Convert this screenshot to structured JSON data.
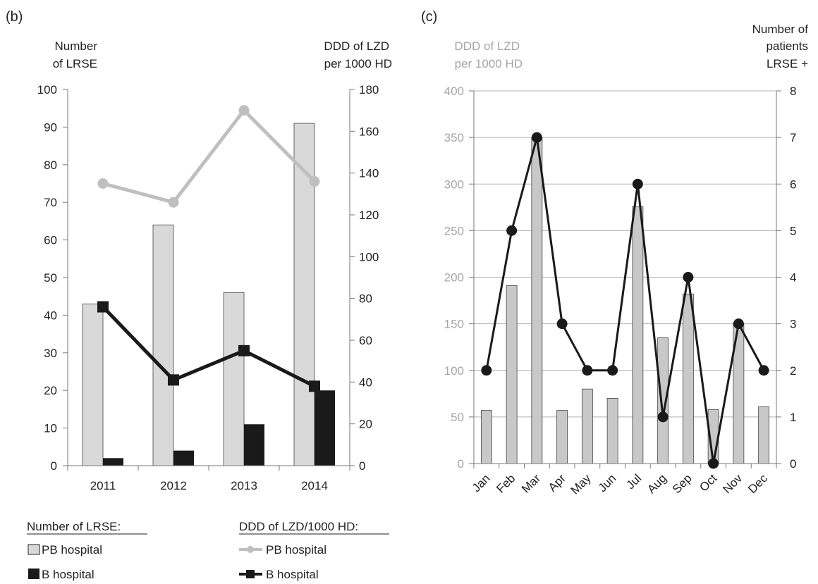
{
  "colors": {
    "pb_bar_fill": "#d9d9d9",
    "b_bar_fill": "#1a1a1a",
    "pb_line": "#bfbfbf",
    "b_line": "#1a1a1a",
    "c_bar_fill": "#c8c8c8",
    "c_line": "#1a1a1a",
    "c_left_axis_text": "#a6a6a6",
    "axis": "#777777",
    "grid": "#b0b0b0",
    "text": "#222222"
  },
  "panel_b": {
    "label": "(b)",
    "left_title": [
      "Number",
      "of LRSE"
    ],
    "right_title": [
      "DDD of LZD",
      "per 1000 HD"
    ],
    "legend": {
      "left_heading": "Number of LRSE:",
      "right_heading": "DDD of LZD/1000 HD:",
      "pb_bar": "PB hospital",
      "b_bar": "B hospital",
      "pb_line": "PB hospital",
      "b_line": "B hospital"
    }
  },
  "panel_c": {
    "label": "(c)",
    "left_title": [
      "DDD of LZD",
      "per 1000 HD"
    ],
    "right_title": [
      "Number of",
      "patients",
      "LRSE +"
    ]
  },
  "chart_data": [
    {
      "type": "bar",
      "categories": [
        "2011",
        "2012",
        "2013",
        "2014"
      ],
      "y_left": {
        "label": "Number of LRSE",
        "ylim": [
          0,
          100
        ],
        "ticks": [
          0,
          10,
          20,
          30,
          40,
          50,
          60,
          70,
          80,
          90,
          100
        ]
      },
      "y_right": {
        "label": "DDD of LZD per 1000 HD",
        "ylim": [
          0,
          180
        ],
        "ticks": [
          0,
          20,
          40,
          60,
          80,
          100,
          120,
          140,
          160,
          180
        ]
      },
      "series": [
        {
          "name": "PB hospital",
          "kind": "bar",
          "axis": "left",
          "values": [
            43,
            64,
            46,
            91
          ]
        },
        {
          "name": "B hospital",
          "kind": "bar",
          "axis": "left",
          "values": [
            2,
            4,
            11,
            20
          ]
        },
        {
          "name": "PB hospital",
          "kind": "line",
          "axis": "right",
          "values": [
            135,
            126,
            170,
            136
          ]
        },
        {
          "name": "B hospital",
          "kind": "line",
          "axis": "right",
          "values": [
            76,
            41,
            55,
            38
          ]
        }
      ],
      "grid": false
    },
    {
      "type": "bar",
      "categories": [
        "Jan",
        "Feb",
        "Mar",
        "Apr",
        "May",
        "Jun",
        "Jul",
        "Aug",
        "Sep",
        "Oct",
        "Nov",
        "Dec"
      ],
      "y_left": {
        "label": "DDD of LZD per 1000 HD",
        "ylim": [
          0,
          400
        ],
        "ticks": [
          0,
          50,
          100,
          150,
          200,
          250,
          300,
          350,
          400
        ]
      },
      "y_right": {
        "label": "Number of patients LRSE +",
        "ylim": [
          0,
          8
        ],
        "ticks": [
          0,
          1,
          2,
          3,
          4,
          5,
          6,
          7,
          8
        ]
      },
      "series": [
        {
          "name": "DDD of LZD per 1000 HD",
          "kind": "bar",
          "axis": "left",
          "values": [
            57,
            191,
            350,
            57,
            80,
            70,
            276,
            135,
            182,
            58,
            150,
            61
          ]
        },
        {
          "name": "Number of patients LRSE +",
          "kind": "line",
          "axis": "right",
          "values": [
            2,
            5,
            7,
            3,
            2,
            2,
            6,
            1,
            4,
            0,
            3,
            2
          ]
        }
      ],
      "grid": true
    }
  ]
}
